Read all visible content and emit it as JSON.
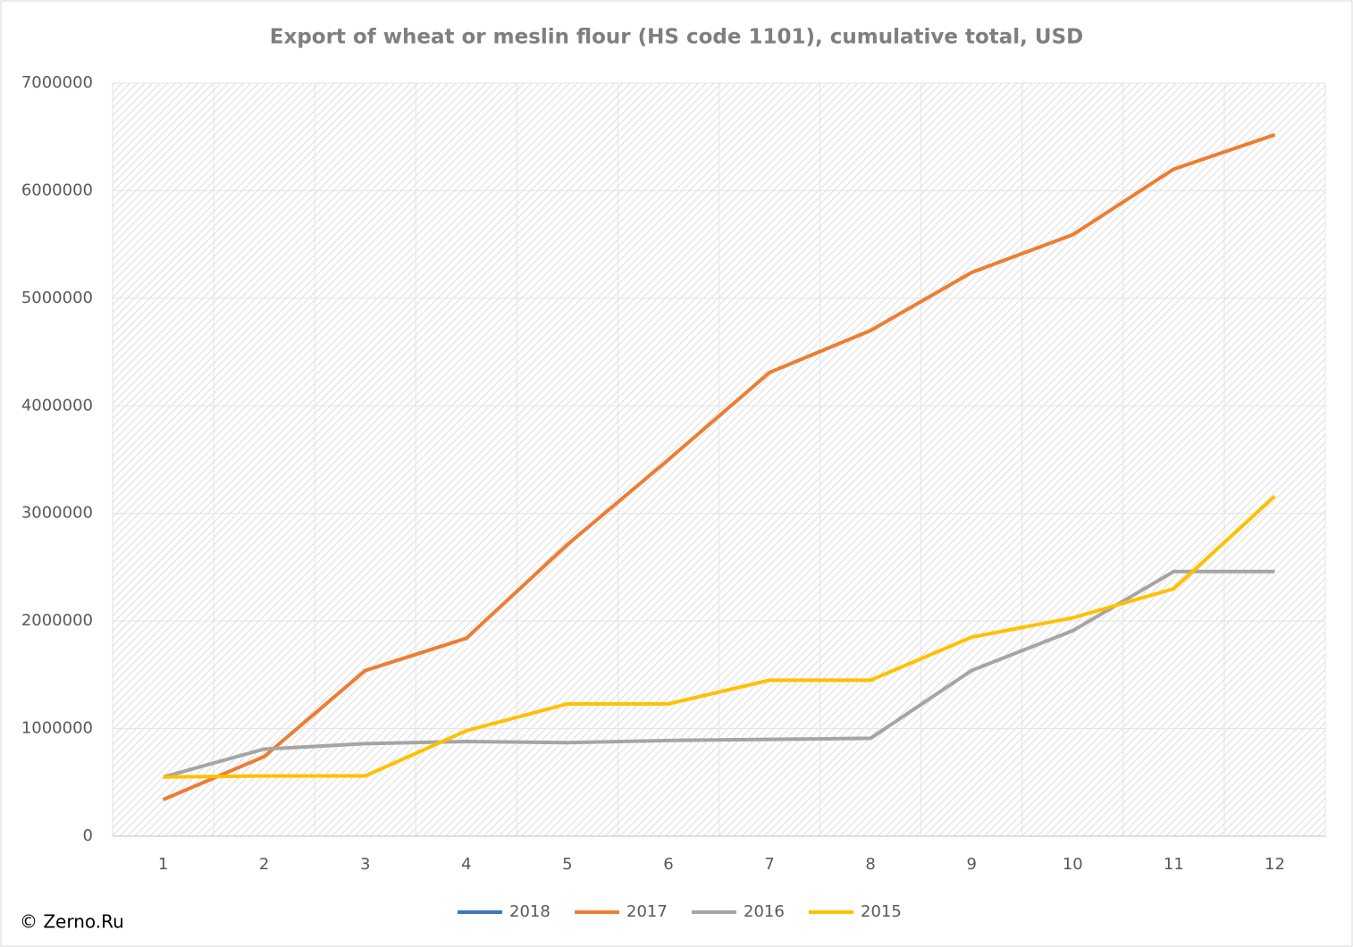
{
  "chart_data": {
    "type": "line",
    "title": "Export of wheat or meslin flour (HS code 1101), cumulative total, USD",
    "watermark": "© Zerno.Ru",
    "categories": [
      "1",
      "2",
      "3",
      "4",
      "5",
      "6",
      "7",
      "8",
      "9",
      "10",
      "11",
      "12"
    ],
    "series": [
      {
        "name": "2018",
        "color": "#4472c4",
        "values": [
          null,
          null,
          null,
          null,
          null,
          null,
          null,
          null,
          null,
          null,
          null,
          null
        ]
      },
      {
        "name": "2017",
        "color": "#ed7d31",
        "values": [
          340000,
          740000,
          1540000,
          1840000,
          2710000,
          3500000,
          4310000,
          4700000,
          5240000,
          5590000,
          6200000,
          6520000
        ]
      },
      {
        "name": "2016",
        "color": "#a5a5a5",
        "values": [
          550000,
          810000,
          860000,
          880000,
          870000,
          890000,
          900000,
          910000,
          1540000,
          1910000,
          2460000,
          2460000
        ]
      },
      {
        "name": "2015",
        "color": "#ffc000",
        "values": [
          550000,
          560000,
          560000,
          980000,
          1230000,
          1230000,
          1450000,
          1450000,
          1850000,
          2030000,
          2300000,
          3160000
        ]
      }
    ],
    "ylim": [
      0,
      7000000
    ],
    "yticks": [
      0,
      1000000,
      2000000,
      3000000,
      4000000,
      5000000,
      6000000,
      7000000
    ],
    "grid": true,
    "legend": "bottom"
  }
}
